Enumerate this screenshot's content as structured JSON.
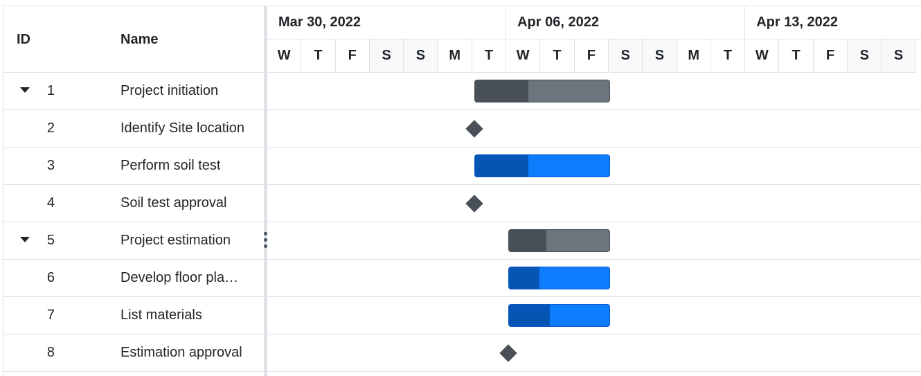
{
  "grid": {
    "columns": {
      "id": "ID",
      "name": "Name"
    }
  },
  "timeline": {
    "weeks": [
      "Mar 30, 2022",
      "Apr 06, 2022",
      "Apr 13, 2022"
    ],
    "days": [
      "W",
      "T",
      "F",
      "S",
      "S",
      "M",
      "T",
      "W",
      "T",
      "F",
      "S",
      "S",
      "M",
      "T",
      "W",
      "T",
      "F",
      "S",
      "S"
    ],
    "weekend_indices": [
      3,
      4,
      10,
      11,
      17,
      18
    ]
  },
  "tasks": [
    {
      "id": "1",
      "name": "Project initiation",
      "parent": true,
      "expanded": true,
      "type": "bar",
      "start_day": 6,
      "duration_days": 4,
      "progress": 0.4
    },
    {
      "id": "2",
      "name": "Identify Site location",
      "parent": false,
      "type": "milestone",
      "start_day": 6
    },
    {
      "id": "3",
      "name": "Perform soil test",
      "parent": false,
      "type": "bar",
      "start_day": 6,
      "duration_days": 4,
      "progress": 0.4
    },
    {
      "id": "4",
      "name": "Soil test approval",
      "parent": false,
      "type": "milestone",
      "start_day": 6
    },
    {
      "id": "5",
      "name": "Project estimation",
      "parent": true,
      "expanded": true,
      "type": "bar",
      "start_day": 7,
      "duration_days": 3,
      "progress": 0.37
    },
    {
      "id": "6",
      "name": "Develop floor pla…",
      "parent": false,
      "type": "bar",
      "start_day": 7,
      "duration_days": 3,
      "progress": 0.3
    },
    {
      "id": "7",
      "name": "List materials",
      "parent": false,
      "type": "bar",
      "start_day": 7,
      "duration_days": 3,
      "progress": 0.41
    },
    {
      "id": "8",
      "name": "Estimation approval",
      "parent": false,
      "type": "milestone",
      "start_day": 7
    }
  ],
  "icons": {
    "expand": "caret-down-icon",
    "splitter": "vertical-dots-icon"
  },
  "colors": {
    "parent_bar": "#6c757d",
    "parent_progress": "#495057",
    "child_bar": "#0d7dfd",
    "child_progress": "#0654b4",
    "milestone": "#495057",
    "weekend_bg": "#f8f9fa"
  }
}
